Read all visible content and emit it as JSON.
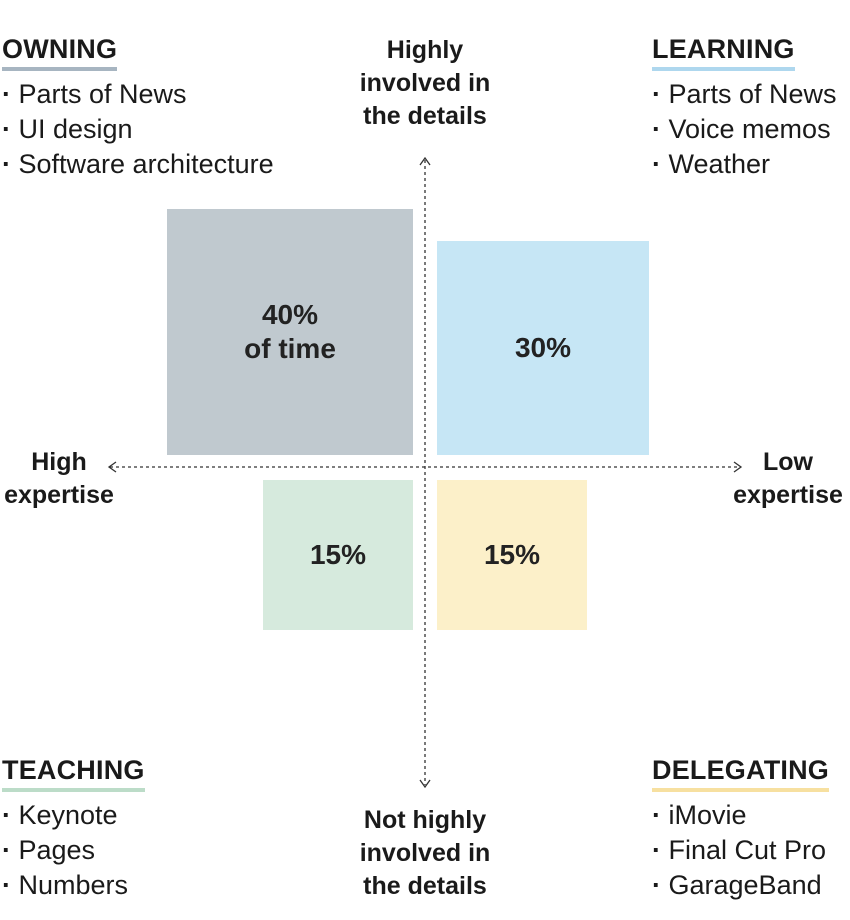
{
  "colors": {
    "owning": "#c0c9cf",
    "learning": "#c6e6f5",
    "teaching": "#d6eadd",
    "delegating": "#fcf0c9",
    "owning_underline": "#a7b5c1",
    "learning_underline": "#aed7ee",
    "teaching_underline": "#bcdcc8",
    "delegating_underline": "#f7e0a0",
    "axis": "#333333"
  },
  "axes": {
    "top": [
      "Highly",
      "involved in",
      "the details"
    ],
    "bottom": [
      "Not highly",
      "involved in",
      "the details"
    ],
    "left": [
      "High",
      "expertise"
    ],
    "right": [
      "Low",
      "expertise"
    ]
  },
  "quadrants": {
    "owning": {
      "title": "OWNING",
      "items": [
        "Parts of News",
        "UI design",
        "Software architecture"
      ],
      "share": [
        "40%",
        "of time"
      ],
      "share_value": 40
    },
    "learning": {
      "title": "LEARNING",
      "items": [
        "Parts of News",
        "Voice memos",
        "Weather"
      ],
      "share": [
        "30%"
      ],
      "share_value": 30
    },
    "teaching": {
      "title": "TEACHING",
      "items": [
        "Keynote",
        "Pages",
        "Numbers"
      ],
      "share": [
        "15%"
      ],
      "share_value": 15
    },
    "delegating": {
      "title": "DELEGATING",
      "items": [
        "iMovie",
        "Final Cut Pro",
        "GarageBand"
      ],
      "share": [
        "15%"
      ],
      "share_value": 15
    }
  }
}
